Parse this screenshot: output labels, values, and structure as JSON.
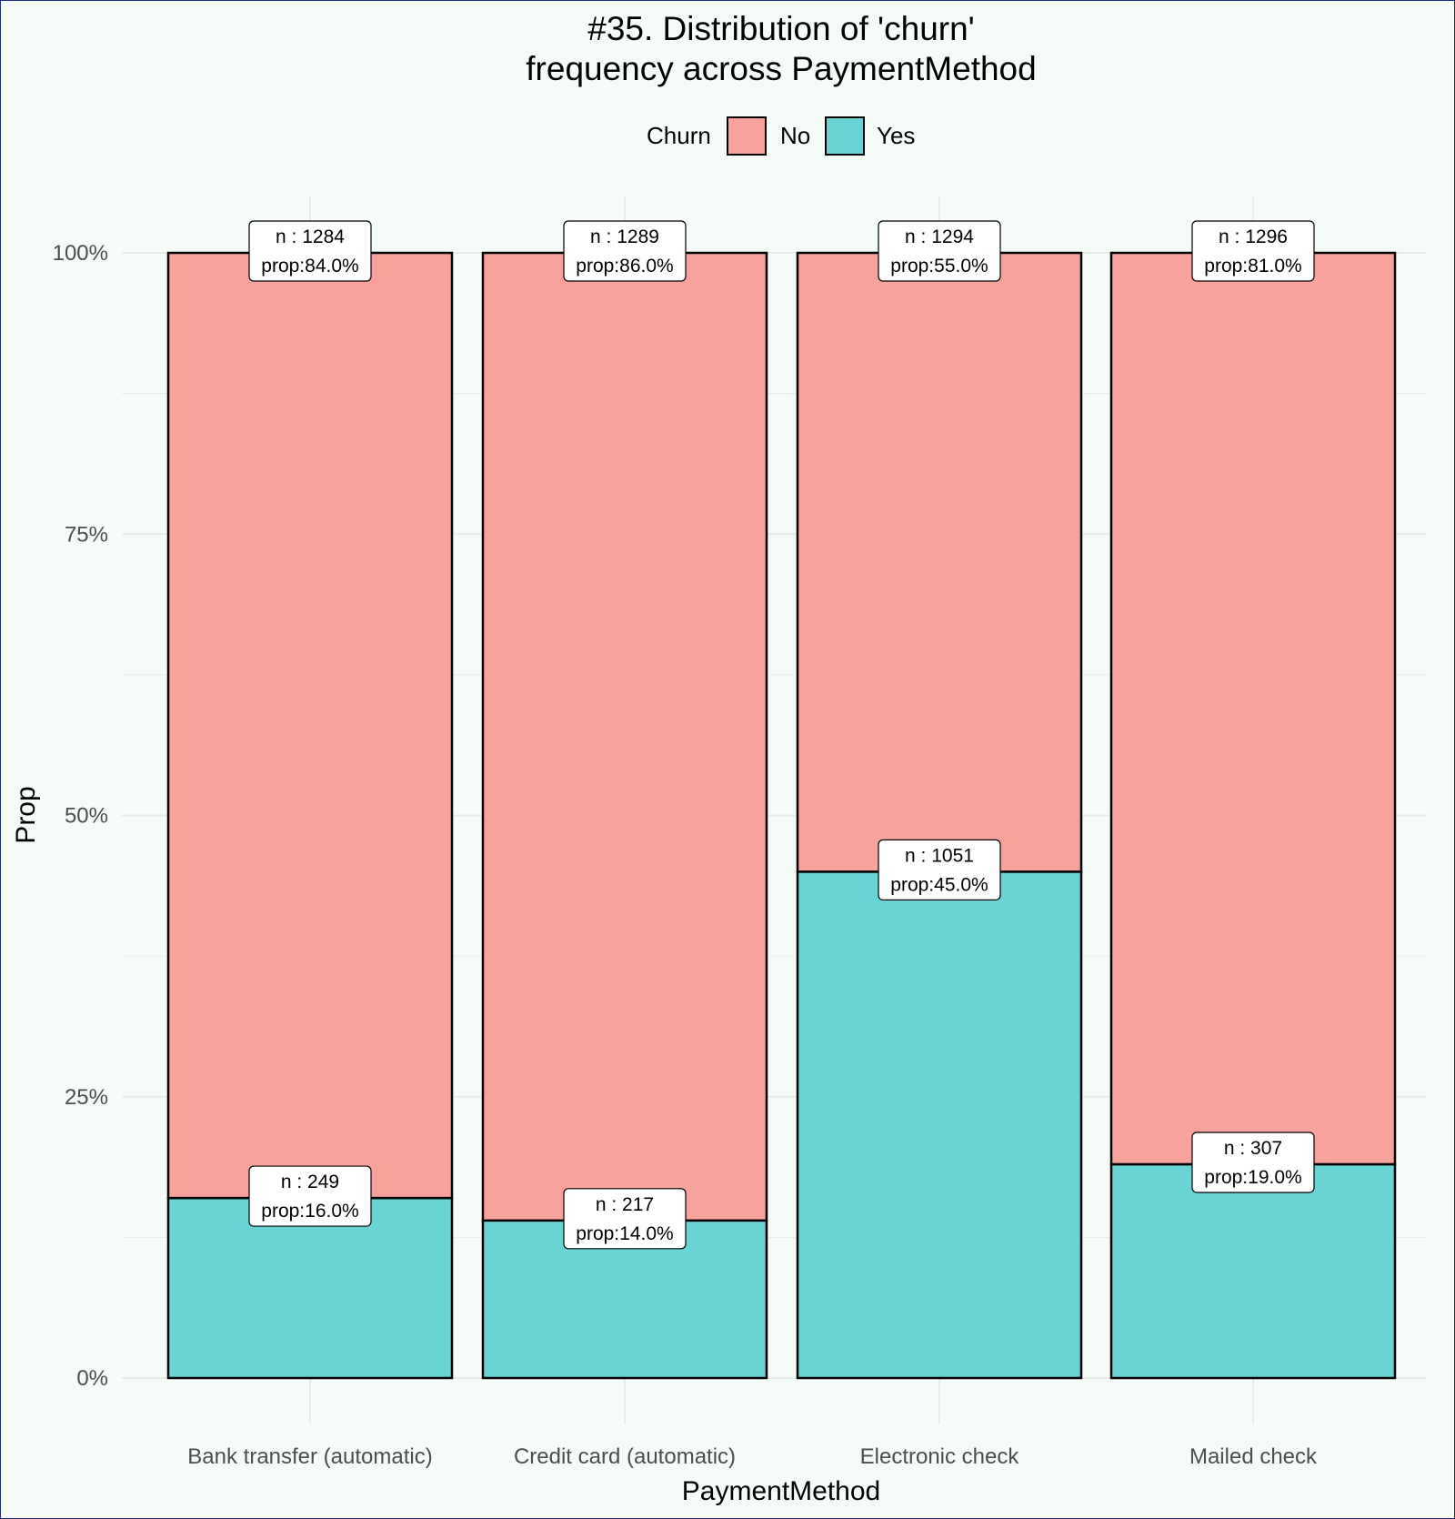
{
  "colors": {
    "No": "#f8a29c",
    "Yes": "#6ad3d6",
    "grid": "#e8ece9",
    "panel": "#f5fcf8",
    "border": "#1f2a8a"
  },
  "chart_data": {
    "type": "bar",
    "stacked": true,
    "title_lines": [
      "#35. Distribution of 'churn'",
      "frequency across PaymentMethod"
    ],
    "xlabel": "PaymentMethod",
    "ylabel": "Prop",
    "ylim": [
      0,
      1
    ],
    "y_ticks": [
      "0%",
      "25%",
      "50%",
      "75%",
      "100%"
    ],
    "legend": {
      "title": "Churn",
      "placement": "top",
      "entries": [
        "No",
        "Yes"
      ]
    },
    "grid": true,
    "categories": [
      "Bank transfer (automatic)",
      "Credit card (automatic)",
      "Electronic check",
      "Mailed check"
    ],
    "series": [
      {
        "name": "Yes",
        "values": [
          0.16,
          0.14,
          0.45,
          0.19
        ],
        "n_labels": [
          "n : 249",
          "n : 217",
          "n : 1051",
          "n : 307"
        ],
        "prop_labels": [
          "prop:16.0%",
          "prop:14.0%",
          "prop:45.0%",
          "prop:19.0%"
        ]
      },
      {
        "name": "No",
        "values": [
          0.84,
          0.86,
          0.55,
          0.81
        ],
        "n_labels": [
          "n : 1284",
          "n : 1289",
          "n : 1294",
          "n : 1296"
        ],
        "prop_labels": [
          "prop:84.0%",
          "prop:86.0%",
          "prop:55.0%",
          "prop:81.0%"
        ]
      }
    ]
  }
}
